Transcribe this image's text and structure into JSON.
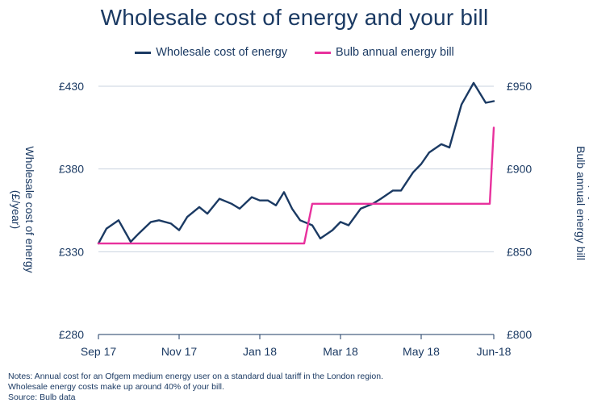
{
  "chart_data": {
    "type": "line",
    "title": "Wholesale cost of energy and your bill",
    "x_tick_labels": [
      "Sep 17",
      "Nov 17",
      "Jan 18",
      "Mar 18",
      "May 18",
      "Jun-18"
    ],
    "x_tick_months": [
      0,
      2,
      4,
      6,
      8,
      9.8
    ],
    "xlim": [
      0,
      9.8
    ],
    "left_axis": {
      "title": "Wholesale cost of energy (£/year)",
      "title_lines": [
        "Wholesale cost of energy",
        "(£/year)"
      ],
      "ylim": [
        280,
        430
      ],
      "ticks": [
        280,
        330,
        380,
        430
      ],
      "tick_labels": [
        "£280",
        "£330",
        "£380",
        "£430"
      ]
    },
    "right_axis": {
      "title": "Bulb annual energy bill (£/year)",
      "title_lines": [
        "Bulb annual energy bill",
        "(£/year)"
      ],
      "ylim": [
        800,
        950
      ],
      "ticks": [
        800,
        850,
        900,
        950
      ],
      "tick_labels": [
        "£800",
        "£850",
        "£900",
        "£950"
      ]
    },
    "series": [
      {
        "name": "Wholesale cost of energy",
        "axis": "left",
        "color": "#1b3a63",
        "x": [
          0,
          0.2,
          0.5,
          0.8,
          1.0,
          1.3,
          1.5,
          1.8,
          2.0,
          2.2,
          2.5,
          2.7,
          3.0,
          3.3,
          3.5,
          3.8,
          4.0,
          4.2,
          4.4,
          4.6,
          4.8,
          5.0,
          5.3,
          5.5,
          5.8,
          6.0,
          6.2,
          6.5,
          6.8,
          7.0,
          7.3,
          7.5,
          7.8,
          8.0,
          8.2,
          8.5,
          8.7,
          9.0,
          9.3,
          9.6,
          9.8
        ],
        "values": [
          335,
          344,
          349,
          336,
          341,
          348,
          349,
          347,
          343,
          351,
          357,
          353,
          362,
          359,
          356,
          363,
          361,
          361,
          358,
          366,
          356,
          349,
          346,
          338,
          343,
          348,
          346,
          356,
          359,
          362,
          367,
          367,
          378,
          383,
          390,
          395,
          393,
          419,
          432,
          420,
          421
        ],
        "legend_label": "Wholesale cost of energy"
      },
      {
        "name": "Bulb annual energy bill",
        "axis": "right",
        "color": "#e8319d",
        "x": [
          0,
          5.1,
          5.3,
          9.7,
          9.8
        ],
        "values": [
          855,
          855,
          879,
          879,
          925
        ],
        "legend_label": "Bulb annual energy bill"
      }
    ],
    "notes": [
      "Notes: Annual cost for an Ofgem medium energy user on a standard dual tariff in the London region.",
      "Wholesale energy costs make up around 40% of your bill.",
      "Source: Bulb data"
    ]
  }
}
